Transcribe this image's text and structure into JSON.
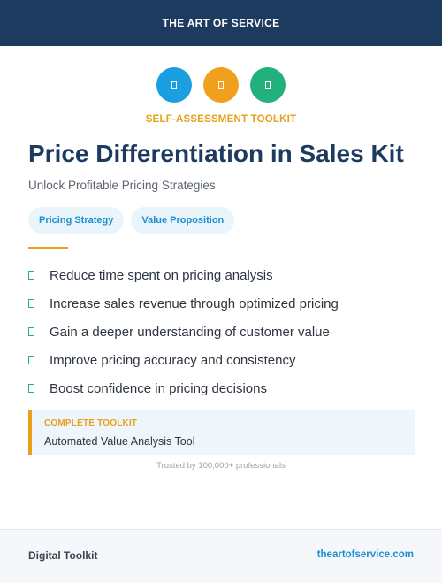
{
  "header": {
    "title": "THE ART OF SERVICE"
  },
  "icons": [
    {
      "name": "document-icon",
      "color": "#1a9fe0",
      "glyph": "▯"
    },
    {
      "name": "document-icon",
      "color": "#f0a01c",
      "glyph": "▯"
    },
    {
      "name": "document-icon",
      "color": "#22b07d",
      "glyph": "▯"
    }
  ],
  "hero": {
    "kicker": "SELF-ASSESSMENT TOOLKIT",
    "title": "Price Differentiation in Sales Kit",
    "subtitle": "Unlock Profitable Pricing Strategies"
  },
  "tags": [
    "Pricing Strategy",
    "Value Proposition"
  ],
  "benefits": [
    "Reduce time spent on pricing analysis",
    "Increase sales revenue through optimized pricing",
    "Gain a deeper understanding of customer value",
    "Improve pricing accuracy and consistency",
    "Boost confidence in pricing decisions"
  ],
  "toolkit": {
    "label": "COMPLETE TOOLKIT",
    "name": "Automated Value Analysis Tool"
  },
  "trusted": "Trusted by 100,000+ professionals",
  "footer": {
    "left": "Digital Toolkit",
    "right": "theartofservice.com"
  },
  "colors": {
    "header_bg": "#1d3a5f",
    "accent_orange": "#e8a01a",
    "accent_blue": "#1a8fd1",
    "accent_green": "#22b07d"
  }
}
